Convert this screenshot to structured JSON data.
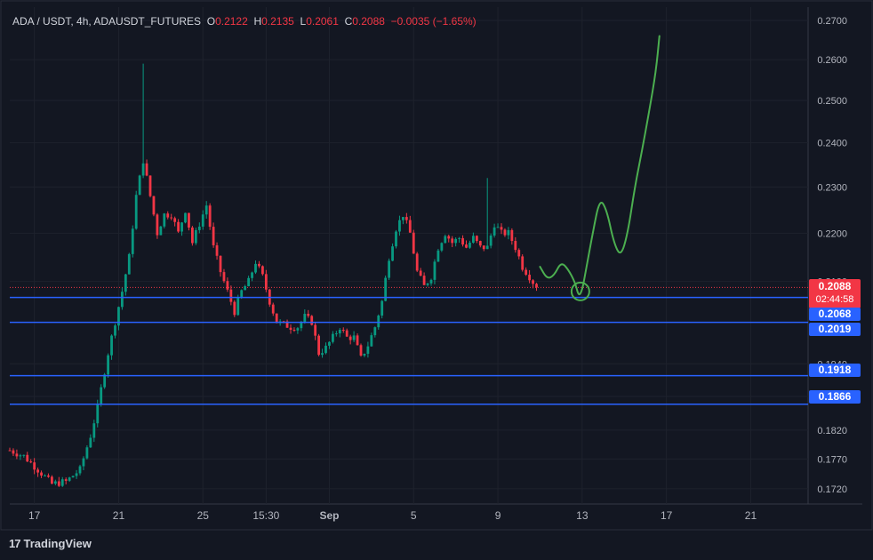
{
  "header": {
    "symbol": "ADA / USDT, 4h, ADAUSDT_FUTURES",
    "o_label": "O",
    "o_value": "0.2122",
    "h_label": "H",
    "h_value": "0.2135",
    "l_label": "L",
    "l_value": "0.2061",
    "c_label": "C",
    "c_value": "0.2088",
    "change": "−0.0035 (−1.65%)"
  },
  "brand": {
    "logo": "17",
    "name": "TradingView"
  },
  "price_tag": {
    "price": "0.2088",
    "countdown": "02:44:58",
    "color": "#f23645"
  },
  "levels": [
    {
      "label": "0.2068",
      "value": 0.2068
    },
    {
      "label": "0.2019",
      "value": 0.2019
    },
    {
      "label": "0.1918",
      "value": 0.1918
    },
    {
      "label": "0.1866",
      "value": 0.1866
    }
  ],
  "colors": {
    "up": "#089981",
    "down": "#f23645",
    "level": "#2962ff",
    "projection": "#4caf50",
    "background": "#131722",
    "grid": "#1e222d",
    "text": "#b2b5be"
  },
  "chart_data": {
    "type": "candlestick",
    "title": "ADA / USDT, 4h, ADAUSDT_FUTURES",
    "interval": "4h",
    "x_ticks": [
      {
        "label": "17",
        "bar": 7
      },
      {
        "label": "21",
        "bar": 31
      },
      {
        "label": "25",
        "bar": 55
      },
      {
        "label": "15:30",
        "bar": 73
      },
      {
        "label": "Sep",
        "bar": 91
      },
      {
        "label": "5",
        "bar": 115
      },
      {
        "label": "9",
        "bar": 139
      },
      {
        "label": "13",
        "bar": 163
      },
      {
        "label": "17",
        "bar": 187
      },
      {
        "label": "21",
        "bar": 211
      }
    ],
    "y_ticks": [
      "0.2700",
      "0.2600",
      "0.2500",
      "0.2400",
      "0.2300",
      "0.2200",
      "0.2100",
      "0.1940",
      "0.1880",
      "0.1820",
      "0.1770",
      "0.1720"
    ],
    "y_scale": "log",
    "ylim": [
      0.1695,
      0.2735
    ],
    "grid": true,
    "last_price": 0.2088,
    "close_path_knots": [
      [
        0,
        0.1785
      ],
      [
        4,
        0.1775
      ],
      [
        8,
        0.1752
      ],
      [
        12,
        0.1728
      ],
      [
        16,
        0.1732
      ],
      [
        20,
        0.1752
      ],
      [
        23,
        0.181
      ],
      [
        25,
        0.186
      ],
      [
        28,
        0.196
      ],
      [
        32,
        0.208
      ],
      [
        34,
        0.215
      ],
      [
        36,
        0.228
      ],
      [
        38,
        0.236
      ],
      [
        40,
        0.228
      ],
      [
        42,
        0.22
      ],
      [
        44,
        0.224
      ],
      [
        46,
        0.224
      ],
      [
        48,
        0.22
      ],
      [
        50,
        0.225
      ],
      [
        52,
        0.218
      ],
      [
        54,
        0.222
      ],
      [
        56,
        0.226
      ],
      [
        58,
        0.217
      ],
      [
        60,
        0.212
      ],
      [
        62,
        0.208
      ],
      [
        64,
        0.204
      ],
      [
        66,
        0.208
      ],
      [
        68,
        0.21
      ],
      [
        70,
        0.214
      ],
      [
        72,
        0.211
      ],
      [
        74,
        0.206
      ],
      [
        76,
        0.202
      ],
      [
        78,
        0.2015
      ],
      [
        80,
        0.201
      ],
      [
        82,
        0.201
      ],
      [
        84,
        0.203
      ],
      [
        86,
        0.202
      ],
      [
        88,
        0.196
      ],
      [
        90,
        0.197
      ],
      [
        92,
        0.199
      ],
      [
        94,
        0.201
      ],
      [
        96,
        0.199
      ],
      [
        98,
        0.199
      ],
      [
        100,
        0.195
      ],
      [
        102,
        0.1975
      ],
      [
        104,
        0.201
      ],
      [
        106,
        0.206
      ],
      [
        108,
        0.215
      ],
      [
        110,
        0.221
      ],
      [
        112,
        0.224
      ],
      [
        114,
        0.22
      ],
      [
        116,
        0.212
      ],
      [
        118,
        0.209
      ],
      [
        120,
        0.211
      ],
      [
        122,
        0.217
      ],
      [
        124,
        0.22
      ],
      [
        126,
        0.218
      ],
      [
        128,
        0.219
      ],
      [
        130,
        0.217
      ],
      [
        132,
        0.219
      ],
      [
        134,
        0.217
      ],
      [
        136,
        0.217
      ],
      [
        138,
        0.222
      ],
      [
        140,
        0.22
      ],
      [
        142,
        0.22
      ],
      [
        144,
        0.217
      ],
      [
        146,
        0.213
      ],
      [
        148,
        0.211
      ],
      [
        150,
        0.2088
      ]
    ],
    "spike_high": {
      "bar": 38,
      "value": 0.259
    },
    "spike_high_2": {
      "bar": 136,
      "value": 0.232
    },
    "projection_path": [
      [
        151,
        0.213
      ],
      [
        153,
        0.2105
      ],
      [
        155,
        0.2112
      ],
      [
        157,
        0.214
      ],
      [
        159,
        0.2125
      ],
      [
        161,
        0.2098
      ],
      [
        162,
        0.207
      ],
      [
        163,
        0.2082
      ],
      [
        164,
        0.212
      ],
      [
        166,
        0.22
      ],
      [
        168,
        0.2275
      ],
      [
        170,
        0.225
      ],
      [
        172,
        0.218
      ],
      [
        174,
        0.215
      ],
      [
        176,
        0.22
      ],
      [
        178,
        0.23
      ],
      [
        180,
        0.238
      ],
      [
        182,
        0.247
      ],
      [
        184,
        0.257
      ],
      [
        185,
        0.266
      ]
    ],
    "circle_marker": {
      "bar": 162.5,
      "value": 0.208
    }
  }
}
